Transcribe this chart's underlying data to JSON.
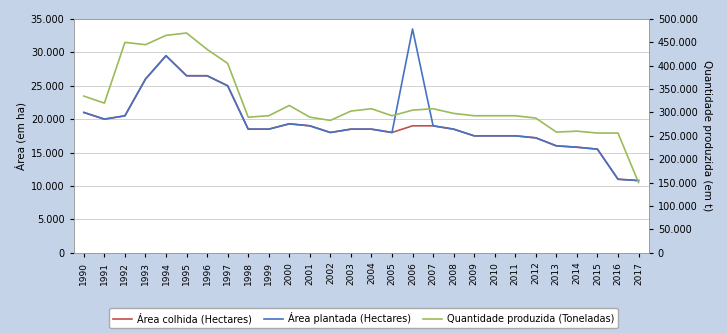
{
  "years": [
    1990,
    1991,
    1992,
    1993,
    1994,
    1995,
    1996,
    1997,
    1998,
    1999,
    2000,
    2001,
    2002,
    2003,
    2004,
    2005,
    2006,
    2007,
    2008,
    2009,
    2010,
    2011,
    2012,
    2013,
    2014,
    2015,
    2016,
    2017
  ],
  "area_plantada": [
    21000,
    20000,
    20500,
    26000,
    29500,
    26500,
    26500,
    25000,
    18500,
    18500,
    19300,
    19000,
    18000,
    18500,
    18500,
    18000,
    33500,
    19000,
    18500,
    17500,
    17500,
    17500,
    17200,
    16000,
    15800,
    15500,
    11000,
    10800
  ],
  "area_colhida": [
    21000,
    20000,
    20500,
    26000,
    29500,
    26500,
    26500,
    25000,
    18500,
    18500,
    19300,
    19000,
    18000,
    18500,
    18500,
    18000,
    19000,
    19000,
    18500,
    17500,
    17500,
    17500,
    17200,
    16000,
    15800,
    15500,
    11000,
    10800
  ],
  "quantidade_produzida": [
    335000,
    320000,
    450000,
    445000,
    465000,
    470000,
    435000,
    405000,
    290000,
    293000,
    315000,
    290000,
    283000,
    303000,
    308000,
    293000,
    305000,
    308000,
    298000,
    293000,
    293000,
    293000,
    288000,
    258000,
    260000,
    256000,
    256000,
    150000
  ],
  "ylim_left": [
    0,
    35000
  ],
  "ylim_right": [
    0,
    500000
  ],
  "yticks_left": [
    0,
    5000,
    10000,
    15000,
    20000,
    25000,
    30000,
    35000
  ],
  "yticks_right": [
    0,
    50000,
    100000,
    150000,
    200000,
    250000,
    300000,
    350000,
    400000,
    450000,
    500000
  ],
  "ylabel_left": "Área (em ha)",
  "ylabel_right": "Quantidade produzida (em t)",
  "color_plantada": "#4472C4",
  "color_colhida": "#C0504D",
  "color_produzida": "#9BBB59",
  "background_color": "#C5D3E8",
  "plot_bg_color": "#FFFFFF",
  "legend_colhida": "Área colhida (Hectares)",
  "legend_plantada": "Área plantada (Hectares)",
  "legend_produzida": "Quantidade produzida (Toneladas)"
}
